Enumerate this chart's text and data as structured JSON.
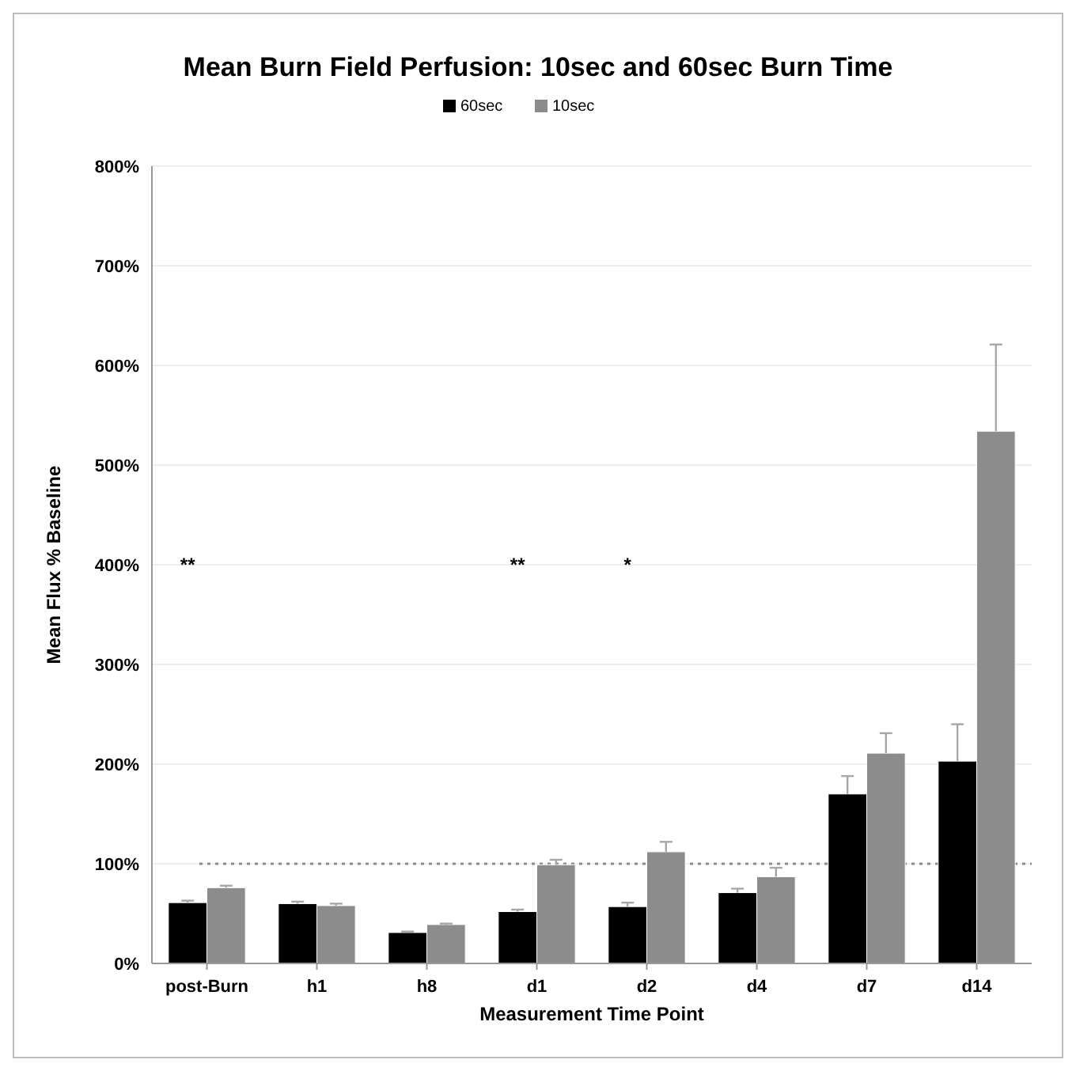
{
  "chart_data": {
    "type": "bar",
    "title": "Mean Burn Field Perfusion: 10sec and 60sec Burn Time",
    "xlabel": "Measurement Time Point",
    "ylabel": "Mean Flux % Baseline",
    "categories": [
      "post-Burn",
      "h1",
      "h8",
      "d1",
      "d2",
      "d4",
      "d7",
      "d14"
    ],
    "series": [
      {
        "name": "60sec",
        "color": "#000000",
        "values": [
          61,
          60,
          31,
          52,
          57,
          71,
          170,
          203
        ],
        "errors": [
          [
            61,
            63
          ],
          [
            60,
            62
          ],
          [
            31,
            32
          ],
          [
            52,
            54
          ],
          [
            57,
            61
          ],
          [
            71,
            75
          ],
          [
            170,
            188
          ],
          [
            203,
            240
          ]
        ]
      },
      {
        "name": "10sec",
        "color": "#8c8c8c",
        "values": [
          76,
          58,
          39,
          99,
          112,
          87,
          211,
          534
        ],
        "errors": [
          [
            76,
            78
          ],
          [
            58,
            60
          ],
          [
            39,
            40
          ],
          [
            99,
            104
          ],
          [
            112,
            122
          ],
          [
            87,
            96
          ],
          [
            211,
            231
          ],
          [
            534,
            621
          ]
        ]
      }
    ],
    "ylim": [
      0,
      800
    ],
    "yticks": [
      {
        "value": 0,
        "label": "0%"
      },
      {
        "value": 100,
        "label": "100%"
      },
      {
        "value": 200,
        "label": "200%"
      },
      {
        "value": 300,
        "label": "300%"
      },
      {
        "value": 400,
        "label": "400%"
      },
      {
        "value": 500,
        "label": "500%"
      },
      {
        "value": 600,
        "label": "600%"
      },
      {
        "value": 700,
        "label": "700%"
      },
      {
        "value": 800,
        "label": "800%"
      }
    ],
    "grid": "y",
    "legend": "top",
    "ref_lines": [
      {
        "axis": "y",
        "value": 100,
        "color": "#8c8c8c",
        "line_style": "dotted"
      }
    ],
    "annotations": [
      "**",
      "**",
      "*"
    ]
  }
}
